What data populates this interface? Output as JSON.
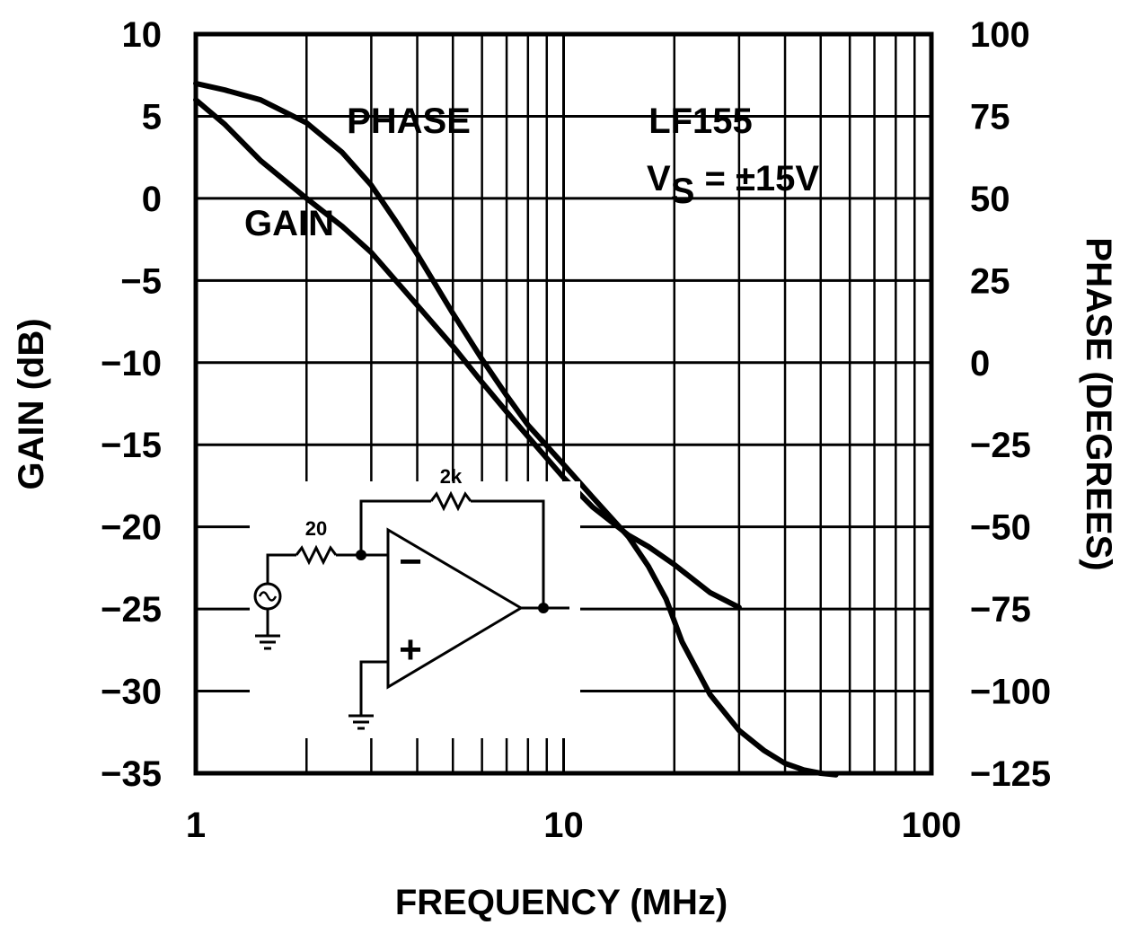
{
  "chart_data": {
    "type": "line",
    "x_scale": "log",
    "xlim": [
      1,
      100
    ],
    "y_left_lim": [
      -35,
      10
    ],
    "y_right_lim": [
      -125,
      100
    ],
    "xlabel": "FREQUENCY (MHz)",
    "ylabel_left": "GAIN (dB)",
    "ylabel_right": "PHASE (DEGREES)",
    "x_ticks": [
      1,
      10,
      100
    ],
    "x_tick_labels": [
      "1",
      "10",
      "100"
    ],
    "y_left_ticks": [
      10,
      5,
      0,
      -5,
      -10,
      -15,
      -20,
      -25,
      -30,
      -35
    ],
    "y_left_tick_labels": [
      "10",
      "5",
      "0",
      "−5",
      "−10",
      "−15",
      "−20",
      "−25",
      "−30",
      "−35"
    ],
    "y_right_ticks": [
      100,
      75,
      50,
      25,
      0,
      -25,
      -50,
      -75,
      -100,
      -125
    ],
    "y_right_tick_labels": [
      "100",
      "75",
      "50",
      "25",
      "0",
      "−25",
      "−50",
      "−75",
      "−100",
      "−125"
    ],
    "grid": true,
    "annotations": {
      "phase_label": "PHASE",
      "gain_label": "GAIN",
      "device": "LF155",
      "supply_prefix": "V",
      "supply_sub": "S",
      "supply_suffix": " = ±15V"
    },
    "series": [
      {
        "name": "PHASE",
        "axis": "right",
        "x": [
          1,
          1.2,
          1.5,
          2,
          2.5,
          3,
          3.5,
          4,
          5,
          6,
          7,
          8,
          10,
          12,
          15,
          17,
          19,
          21,
          25,
          30,
          35,
          40,
          45,
          50,
          55
        ],
        "y": [
          85,
          83,
          80,
          73,
          64,
          54,
          43,
          33,
          15,
          1,
          -10,
          -19,
          -31,
          -41,
          -53,
          -62,
          -72,
          -85,
          -101,
          -112,
          -118,
          -122,
          -124,
          -125,
          -125.5
        ]
      },
      {
        "name": "GAIN",
        "axis": "left",
        "x": [
          1,
          1.2,
          1.5,
          2,
          2.5,
          3,
          4,
          5,
          6,
          7,
          8,
          10,
          12,
          15,
          17,
          20,
          25,
          30
        ],
        "y": [
          6,
          4.5,
          2.3,
          0,
          -1.7,
          -3.3,
          -6.5,
          -9,
          -11.2,
          -13,
          -14.5,
          -17,
          -18.8,
          -20.5,
          -21.2,
          -22.3,
          -24,
          -24.9
        ]
      }
    ],
    "inset_circuit": {
      "input_resistor": "20",
      "feedback_resistor": "2k",
      "inverting_input": "−",
      "noninverting_input": "+"
    }
  }
}
